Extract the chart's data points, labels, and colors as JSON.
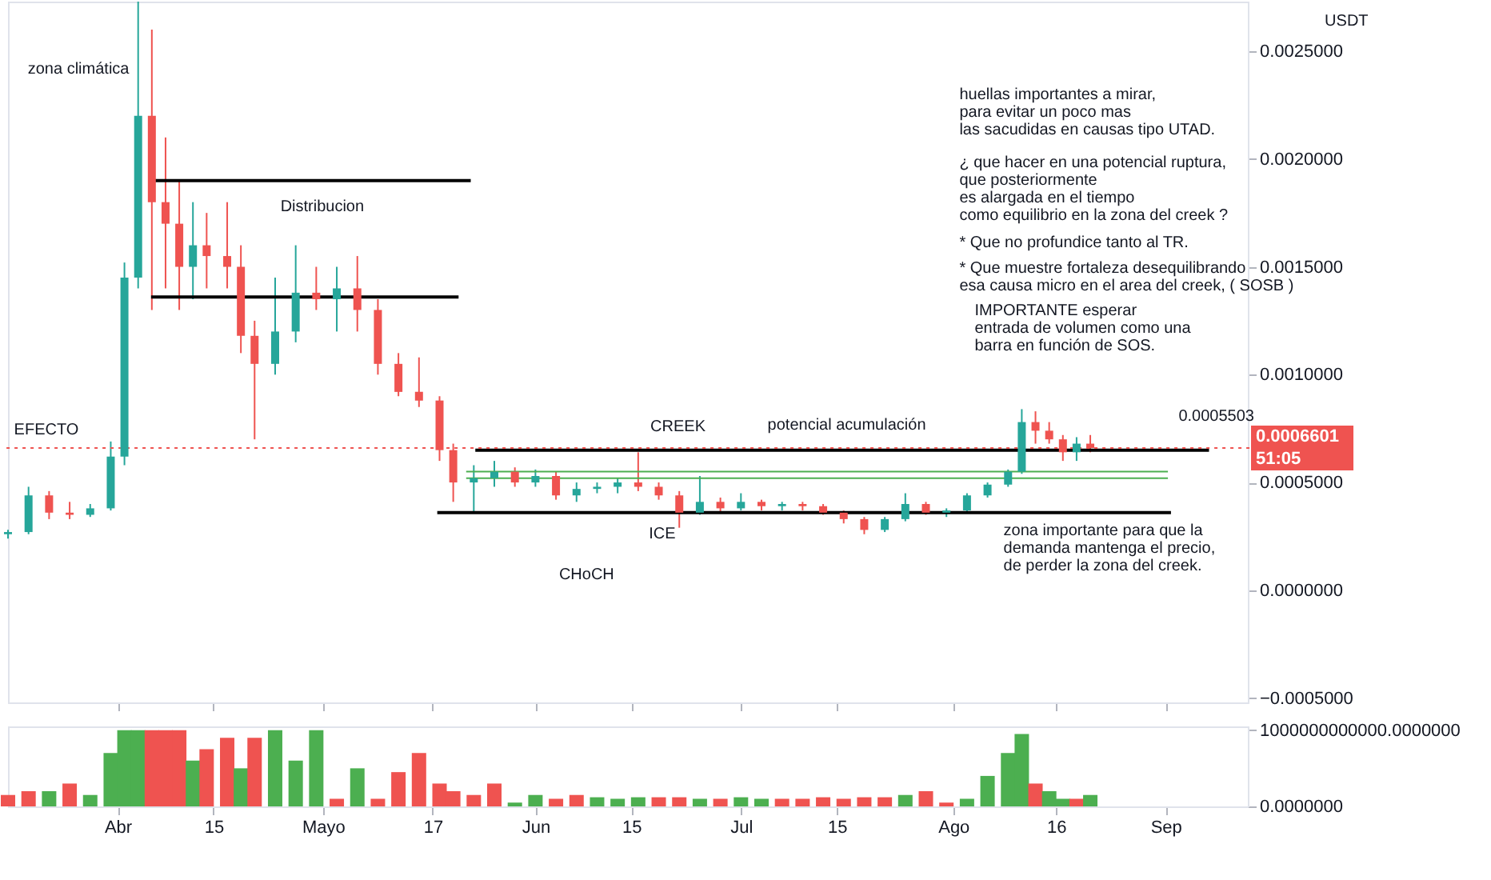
{
  "chart_data": [
    {
      "type": "candlestick",
      "x": [
        "--03-16",
        "--03-19",
        "--03-22",
        "--03-25",
        "--03-28",
        "--03-31",
        "--04-02",
        "--04-04",
        "--04-06",
        "--04-08",
        "--04-10",
        "--04-12",
        "--04-14",
        "--04-17",
        "--04-19",
        "--04-21",
        "--04-24",
        "--04-27",
        "--04-30",
        "--05-03",
        "--05-06",
        "--05-09",
        "--05-12",
        "--05-15",
        "--05-18",
        "--05-20",
        "--05-23",
        "--05-26",
        "--05-29",
        "--06-01",
        "--06-04",
        "--06-07",
        "--06-10",
        "--06-13",
        "--06-16",
        "--06-19",
        "--06-22",
        "--06-25",
        "--06-28",
        "--07-01",
        "--07-04",
        "--07-07",
        "--07-10",
        "--07-13",
        "--07-16",
        "--07-19",
        "--07-22",
        "--07-25",
        "--07-28",
        "--07-31",
        "--08-03",
        "--08-06",
        "--08-09",
        "--08-11",
        "--08-13",
        "--08-15",
        "--08-17",
        "--08-19",
        "--08-21"
      ],
      "ohlc": [
        [
          0.00026,
          0.00028,
          0.00024,
          0.00027
        ],
        [
          0.00027,
          0.00048,
          0.00026,
          0.00044
        ],
        [
          0.00044,
          0.00046,
          0.00033,
          0.00036
        ],
        [
          0.00036,
          0.00041,
          0.00033,
          0.00035
        ],
        [
          0.00035,
          0.0004,
          0.00034,
          0.00038
        ],
        [
          0.00038,
          0.00069,
          0.00037,
          0.00062
        ],
        [
          0.00062,
          0.00152,
          0.00058,
          0.00145
        ],
        [
          0.00145,
          0.00273,
          0.0014,
          0.0022
        ],
        [
          0.0022,
          0.0026,
          0.0013,
          0.0018
        ],
        [
          0.0018,
          0.0021,
          0.0014,
          0.0017
        ],
        [
          0.0017,
          0.0019,
          0.0013,
          0.0015
        ],
        [
          0.0015,
          0.0018,
          0.00135,
          0.0016
        ],
        [
          0.0016,
          0.00175,
          0.0014,
          0.00155
        ],
        [
          0.00155,
          0.0018,
          0.0014,
          0.0015
        ],
        [
          0.0015,
          0.0016,
          0.0011,
          0.00118
        ],
        [
          0.00118,
          0.00125,
          0.0007,
          0.00105
        ],
        [
          0.00105,
          0.00145,
          0.001,
          0.0012
        ],
        [
          0.0012,
          0.0016,
          0.00115,
          0.00138
        ],
        [
          0.00138,
          0.0015,
          0.0013,
          0.00135
        ],
        [
          0.00135,
          0.0015,
          0.0012,
          0.0014
        ],
        [
          0.0014,
          0.00155,
          0.0012,
          0.0013
        ],
        [
          0.0013,
          0.00135,
          0.001,
          0.00105
        ],
        [
          0.00105,
          0.0011,
          0.0009,
          0.00092
        ],
        [
          0.00092,
          0.00108,
          0.00085,
          0.00088
        ],
        [
          0.00088,
          0.0009,
          0.0006,
          0.00065
        ],
        [
          0.00065,
          0.00068,
          0.00041,
          0.0005
        ],
        [
          0.0005,
          0.00058,
          0.00036,
          0.00052
        ],
        [
          0.00052,
          0.0006,
          0.00048,
          0.00055
        ],
        [
          0.00055,
          0.00057,
          0.00048,
          0.0005
        ],
        [
          0.0005,
          0.00056,
          0.00048,
          0.00053
        ],
        [
          0.00053,
          0.00055,
          0.00042,
          0.00044
        ],
        [
          0.00044,
          0.0005,
          0.00041,
          0.00047
        ],
        [
          0.00047,
          0.0005,
          0.00045,
          0.00048
        ],
        [
          0.00048,
          0.00052,
          0.00045,
          0.0005
        ],
        [
          0.0005,
          0.00064,
          0.00046,
          0.00048
        ],
        [
          0.00048,
          0.0005,
          0.00042,
          0.00044
        ],
        [
          0.00044,
          0.00046,
          0.00029,
          0.00036
        ],
        [
          0.00036,
          0.00053,
          0.00035,
          0.00041
        ],
        [
          0.00041,
          0.00043,
          0.00036,
          0.00038
        ],
        [
          0.00038,
          0.00045,
          0.00037,
          0.00041
        ],
        [
          0.00041,
          0.00042,
          0.00037,
          0.00039
        ],
        [
          0.00039,
          0.00041,
          0.00037,
          0.0004
        ],
        [
          0.0004,
          0.00041,
          0.00037,
          0.00039
        ],
        [
          0.00039,
          0.0004,
          0.00035,
          0.00036
        ],
        [
          0.00036,
          0.00037,
          0.00031,
          0.00033
        ],
        [
          0.00033,
          0.00034,
          0.00026,
          0.00028
        ],
        [
          0.00028,
          0.00034,
          0.00027,
          0.00033
        ],
        [
          0.00033,
          0.00045,
          0.00032,
          0.0004
        ],
        [
          0.0004,
          0.00041,
          0.00035,
          0.00036
        ],
        [
          0.00036,
          0.00038,
          0.00034,
          0.00037
        ],
        [
          0.00037,
          0.00045,
          0.00036,
          0.00044
        ],
        [
          0.00044,
          0.0005,
          0.00043,
          0.00049
        ],
        [
          0.00049,
          0.00056,
          0.00048,
          0.00055
        ],
        [
          0.00055,
          0.00084,
          0.00054,
          0.00078
        ],
        [
          0.00078,
          0.00083,
          0.00068,
          0.00074
        ],
        [
          0.00074,
          0.00078,
          0.00068,
          0.0007
        ],
        [
          0.0007,
          0.00072,
          0.0006,
          0.00064
        ],
        [
          0.00064,
          0.00071,
          0.0006,
          0.00068
        ],
        [
          0.00068,
          0.00072,
          0.00064,
          0.00066
        ]
      ],
      "colors": [
        "#26a69a",
        "#26a69a",
        "#ef5350",
        "#ef5350",
        "#26a69a",
        "#26a69a",
        "#26a69a",
        "#26a69a",
        "#ef5350",
        "#ef5350",
        "#ef5350",
        "#26a69a",
        "#ef5350",
        "#ef5350",
        "#ef5350",
        "#ef5350",
        "#26a69a",
        "#26a69a",
        "#ef5350",
        "#26a69a",
        "#ef5350",
        "#ef5350",
        "#ef5350",
        "#ef5350",
        "#ef5350",
        "#ef5350",
        "#26a69a",
        "#26a69a",
        "#ef5350",
        "#26a69a",
        "#ef5350",
        "#26a69a",
        "#26a69a",
        "#26a69a",
        "#ef5350",
        "#ef5350",
        "#ef5350",
        "#26a69a",
        "#ef5350",
        "#26a69a",
        "#ef5350",
        "#26a69a",
        "#ef5350",
        "#ef5350",
        "#ef5350",
        "#ef5350",
        "#26a69a",
        "#26a69a",
        "#ef5350",
        "#26a69a",
        "#26a69a",
        "#26a69a",
        "#26a69a",
        "#26a69a",
        "#ef5350",
        "#ef5350",
        "#ef5350",
        "#26a69a",
        "#ef5350"
      ],
      "xlim": [
        "--03-16",
        "--09-13"
      ],
      "ylim": [
        -0.00052,
        0.00273
      ],
      "xticks": [
        {
          "value": "--04-01",
          "label": "Abr"
        },
        {
          "value": "--04-15",
          "label": "15"
        },
        {
          "value": "--05-01",
          "label": "Mayo"
        },
        {
          "value": "--05-17",
          "label": "17"
        },
        {
          "value": "--06-01",
          "label": "Jun"
        },
        {
          "value": "--06-15",
          "label": "15"
        },
        {
          "value": "--07-01",
          "label": "Jul"
        },
        {
          "value": "--07-15",
          "label": "15"
        },
        {
          "value": "--08-01",
          "label": "Ago"
        },
        {
          "value": "--08-16",
          "label": "16"
        },
        {
          "value": "--09-01",
          "label": "Sep"
        }
      ],
      "tick_labels": "y",
      "yticks": [
        {
          "value": -0.0005,
          "label": "−0.0005000"
        },
        {
          "value": 0,
          "label": "0.0000000"
        },
        {
          "value": 0.0005,
          "label": "0.0005000"
        },
        {
          "value": 0.001,
          "label": "0.0010000"
        },
        {
          "value": 0.0015,
          "label": "0.0015000"
        },
        {
          "value": 0.002,
          "label": "0.0020000"
        },
        {
          "value": 0.0025,
          "label": "0.0025000"
        }
      ],
      "ref_lines": [
        {
          "axis": "y",
          "value": 0.0019,
          "color": "#000000"
        },
        {
          "axis": "y",
          "value": 0.00136,
          "color": "#000000"
        },
        {
          "axis": "y",
          "value": 0.00065,
          "color": "#000000"
        },
        {
          "axis": "y",
          "value": 0.00036,
          "color": "#000000"
        },
        {
          "axis": "y",
          "value": 0.00055,
          "color": "#4caf50"
        },
        {
          "axis": "y",
          "value": 0.00052,
          "color": "#4caf50"
        },
        {
          "axis": "y",
          "value": 0.0006601,
          "label": "0.0006601\n51:05",
          "color": "#ef5350",
          "line_style": "dotted"
        }
      ],
      "annotations": [
        "zona climática",
        "EFECTO",
        "Distribucion",
        "CREEK",
        "potencial acumulación",
        "ICE",
        "CHoCH",
        "zona importante para que la\ndemanda mantenga el precio,\nde perder la zona del creek.",
        "0.0005503",
        "USDT",
        "huellas importantes a mirar,\npara evitar un poco mas\nlas sacudidas en causas tipo UTAD.",
        "¿ que hacer en una potencial ruptura,\nque posteriormente\nes alargada en el tiempo\ncomo equilibrio en la zona del creek ?",
        "* Que no profundice tanto al TR.",
        "* Que muestre fortaleza desequilibrando\nesa causa micro en el area del creek, ( SOSB )",
        "IMPORTANTE esperar\nentrada de volumen como una\nbarra en función de SOS."
      ]
    },
    {
      "type": "bar",
      "x": [
        "--03-16",
        "--03-19",
        "--03-22",
        "--03-25",
        "--03-28",
        "--03-31",
        "--04-02",
        "--04-04",
        "--04-06",
        "--04-08",
        "--04-10",
        "--04-12",
        "--04-14",
        "--04-17",
        "--04-19",
        "--04-21",
        "--04-24",
        "--04-27",
        "--04-30",
        "--05-03",
        "--05-06",
        "--05-09",
        "--05-12",
        "--05-15",
        "--05-18",
        "--05-20",
        "--05-23",
        "--05-26",
        "--05-29",
        "--06-01",
        "--06-04",
        "--06-07",
        "--06-10",
        "--06-13",
        "--06-16",
        "--06-19",
        "--06-22",
        "--06-25",
        "--06-28",
        "--07-01",
        "--07-04",
        "--07-07",
        "--07-10",
        "--07-13",
        "--07-16",
        "--07-19",
        "--07-22",
        "--07-25",
        "--07-28",
        "--07-31",
        "--08-03",
        "--08-06",
        "--08-09",
        "--08-11",
        "--08-13",
        "--08-15",
        "--08-17",
        "--08-19",
        "--08-21"
      ],
      "values": [
        150000000000,
        200000000000,
        200000000000,
        300000000000,
        150000000000,
        700000000000,
        1000000000000,
        1000000000000,
        1000000000000,
        1000000000000,
        1000000000000,
        600000000000,
        750000000000,
        900000000000,
        500000000000,
        900000000000,
        1000000000000,
        600000000000,
        1000000000000,
        100000000000,
        500000000000,
        100000000000,
        450000000000,
        700000000000,
        300000000000,
        200000000000,
        150000000000,
        300000000000,
        50000000000,
        150000000000,
        100000000000,
        150000000000,
        120000000000,
        100000000000,
        120000000000,
        120000000000,
        120000000000,
        100000000000,
        100000000000,
        120000000000,
        100000000000,
        100000000000,
        100000000000,
        120000000000,
        100000000000,
        120000000000,
        120000000000,
        150000000000,
        200000000000,
        50000000000,
        100000000000,
        400000000000,
        700000000000,
        950000000000,
        300000000000,
        200000000000,
        100000000000,
        100000000000,
        150000000000
      ],
      "colors": [
        "#ef5350",
        "#ef5350",
        "#4caf50",
        "#ef5350",
        "#4caf50",
        "#4caf50",
        "#4caf50",
        "#4caf50",
        "#ef5350",
        "#ef5350",
        "#ef5350",
        "#4caf50",
        "#ef5350",
        "#ef5350",
        "#4caf50",
        "#ef5350",
        "#4caf50",
        "#4caf50",
        "#4caf50",
        "#ef5350",
        "#4caf50",
        "#ef5350",
        "#ef5350",
        "#ef5350",
        "#ef5350",
        "#ef5350",
        "#ef5350",
        "#ef5350",
        "#4caf50",
        "#4caf50",
        "#ef5350",
        "#ef5350",
        "#4caf50",
        "#4caf50",
        "#4caf50",
        "#ef5350",
        "#ef5350",
        "#4caf50",
        "#ef5350",
        "#4caf50",
        "#4caf50",
        "#ef5350",
        "#ef5350",
        "#ef5350",
        "#ef5350",
        "#ef5350",
        "#ef5350",
        "#4caf50",
        "#ef5350",
        "#ef5350",
        "#4caf50",
        "#4caf50",
        "#4caf50",
        "#4caf50",
        "#ef5350",
        "#4caf50",
        "#4caf50",
        "#ef5350",
        "#4caf50"
      ],
      "xlim": [
        "--03-16",
        "--09-13"
      ],
      "xticks": [
        {
          "value": "--04-01",
          "label": "Abr"
        },
        {
          "value": "--04-15",
          "label": "15"
        },
        {
          "value": "--05-01",
          "label": "Mayo"
        },
        {
          "value": "--05-17",
          "label": "17"
        },
        {
          "value": "--06-01",
          "label": "Jun"
        },
        {
          "value": "--06-15",
          "label": "15"
        },
        {
          "value": "--07-01",
          "label": "Jul"
        },
        {
          "value": "--07-15",
          "label": "15"
        },
        {
          "value": "--08-01",
          "label": "Ago"
        },
        {
          "value": "--08-16",
          "label": "16"
        },
        {
          "value": "--09-01",
          "label": "Sep"
        }
      ],
      "ylim": [
        0,
        1050000000000
      ],
      "yticks": [
        {
          "value": 0,
          "label": "0.0000000"
        },
        {
          "value": 1000000000000,
          "label": "1000000000000.0000000"
        }
      ]
    }
  ]
}
